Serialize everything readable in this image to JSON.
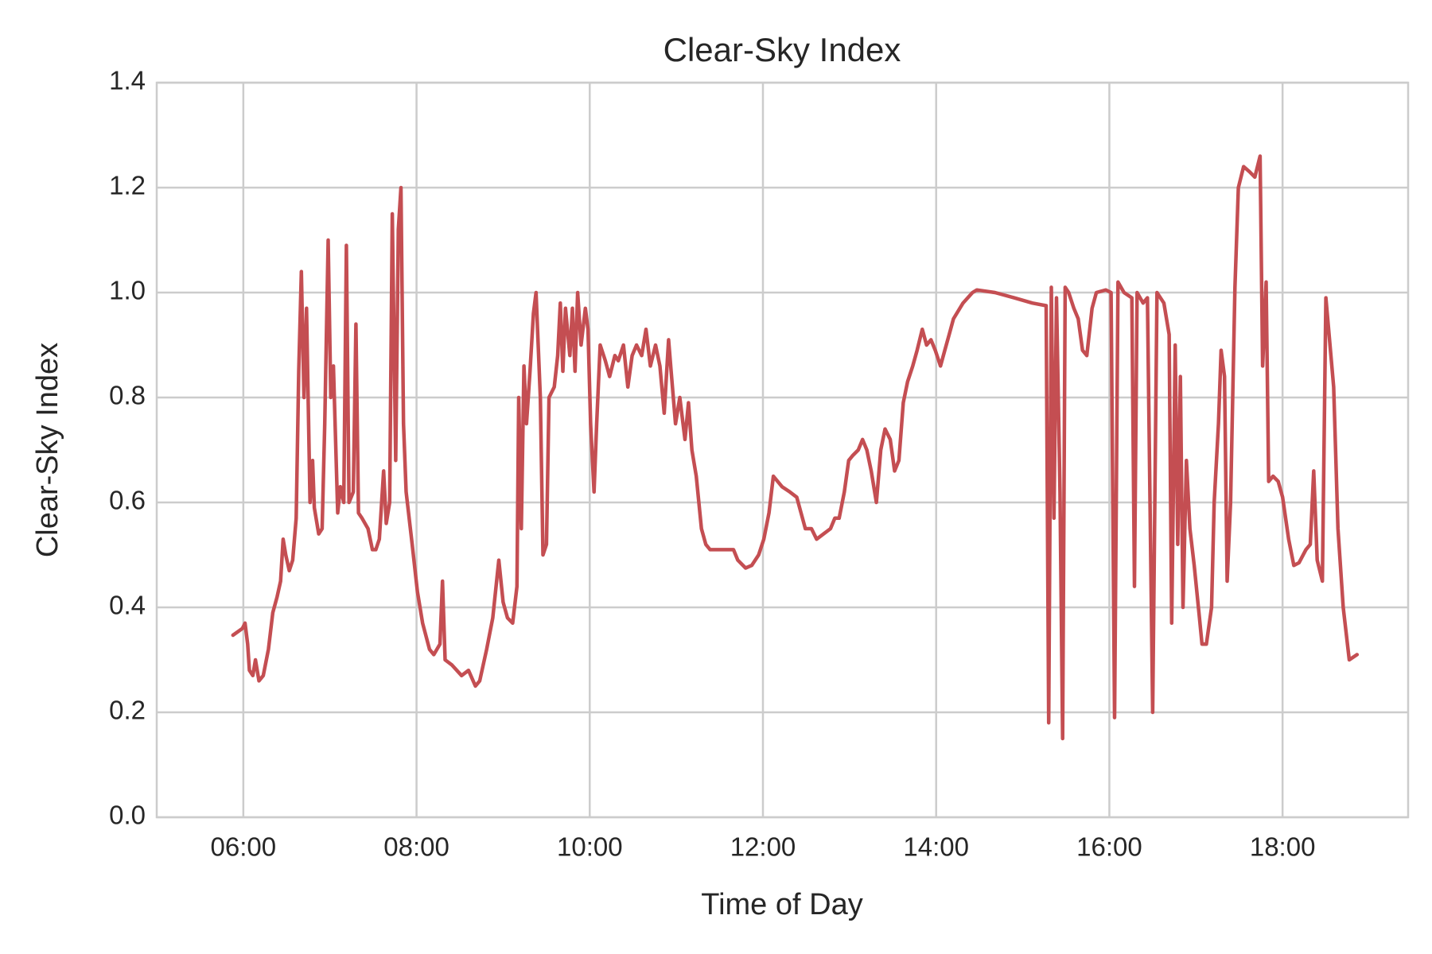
{
  "chart_data": {
    "type": "line",
    "title": "Clear-Sky Index",
    "xlabel": "Time of Day",
    "ylabel": "Clear-Sky Index",
    "color": "#c44e52",
    "grid": true,
    "xlim": [
      5.0,
      19.45
    ],
    "ylim": [
      0,
      1.4
    ],
    "xticks": [
      {
        "value": 6,
        "label": "06:00"
      },
      {
        "value": 8,
        "label": "08:00"
      },
      {
        "value": 10,
        "label": "10:00"
      },
      {
        "value": 12,
        "label": "12:00"
      },
      {
        "value": 14,
        "label": "14:00"
      },
      {
        "value": 16,
        "label": "16:00"
      },
      {
        "value": 18,
        "label": "18:00"
      }
    ],
    "yticks": [
      {
        "value": 0,
        "label": "0.0"
      },
      0.2,
      0.4,
      0.6,
      0.8,
      {
        "value": 1,
        "label": "1.0"
      },
      1.2,
      1.4
    ],
    "x": [
      5.88,
      5.99,
      6.02,
      6.05,
      6.07,
      6.11,
      6.14,
      6.18,
      6.23,
      6.29,
      6.34,
      6.39,
      6.43,
      6.46,
      6.49,
      6.53,
      6.57,
      6.61,
      6.64,
      6.67,
      6.7,
      6.73,
      6.77,
      6.8,
      6.82,
      6.87,
      6.91,
      6.94,
      6.98,
      7.01,
      7.04,
      7.09,
      7.12,
      7.16,
      7.19,
      7.22,
      7.27,
      7.3,
      7.33,
      7.37,
      7.44,
      7.49,
      7.53,
      7.57,
      7.62,
      7.65,
      7.69,
      7.72,
      7.76,
      7.79,
      7.82,
      7.85,
      7.88,
      7.95,
      8.01,
      8.07,
      8.15,
      8.2,
      8.27,
      8.3,
      8.33,
      8.41,
      8.52,
      8.6,
      8.68,
      8.73,
      8.81,
      8.88,
      8.95,
      9.0,
      9.05,
      9.11,
      9.16,
      9.18,
      9.21,
      9.24,
      9.27,
      9.31,
      9.35,
      9.38,
      9.43,
      9.46,
      9.5,
      9.53,
      9.59,
      9.63,
      9.66,
      9.69,
      9.72,
      9.77,
      9.8,
      9.83,
      9.86,
      9.9,
      9.95,
      9.98,
      10.01,
      10.05,
      10.08,
      10.12,
      10.18,
      10.23,
      10.29,
      10.33,
      10.39,
      10.44,
      10.49,
      10.54,
      10.6,
      10.65,
      10.7,
      10.76,
      10.81,
      10.86,
      10.91,
      10.94,
      10.99,
      11.04,
      11.1,
      11.14,
      11.18,
      11.23,
      11.29,
      11.34,
      11.39,
      11.5,
      11.61,
      11.66,
      11.71,
      11.8,
      11.87,
      11.95,
      12.01,
      12.07,
      12.12,
      12.17,
      12.22,
      12.31,
      12.39,
      12.44,
      12.49,
      12.56,
      12.62,
      12.7,
      12.78,
      12.83,
      12.88,
      12.94,
      12.99,
      13.04,
      13.1,
      13.15,
      13.2,
      13.25,
      13.31,
      13.36,
      13.41,
      13.47,
      13.52,
      13.57,
      13.62,
      13.67,
      13.73,
      13.78,
      13.84,
      13.89,
      13.94,
      13.99,
      14.05,
      14.1,
      14.15,
      14.2,
      14.31,
      14.42,
      14.47,
      14.68,
      14.9,
      15.11,
      15.27,
      15.3,
      15.33,
      15.36,
      15.39,
      15.43,
      15.46,
      15.49,
      15.53,
      15.59,
      15.64,
      15.69,
      15.74,
      15.8,
      15.85,
      15.96,
      16.02,
      16.06,
      16.1,
      16.17,
      16.26,
      16.29,
      16.32,
      16.39,
      16.44,
      16.5,
      16.55,
      16.63,
      16.69,
      16.72,
      16.76,
      16.79,
      16.82,
      16.85,
      16.89,
      16.93,
      16.98,
      17.04,
      17.07,
      17.12,
      17.18,
      17.21,
      17.26,
      17.29,
      17.33,
      17.36,
      17.4,
      17.45,
      17.49,
      17.55,
      17.62,
      17.68,
      17.74,
      17.77,
      17.81,
      17.84,
      17.89,
      17.95,
      18.0,
      18.07,
      18.13,
      18.19,
      18.27,
      18.32,
      18.36,
      18.4,
      18.46,
      18.5,
      18.59,
      18.64,
      18.7,
      18.77,
      18.86
    ],
    "values": [
      0.347,
      0.36,
      0.37,
      0.33,
      0.28,
      0.27,
      0.3,
      0.26,
      0.27,
      0.32,
      0.39,
      0.42,
      0.45,
      0.53,
      0.5,
      0.47,
      0.49,
      0.57,
      0.85,
      1.04,
      0.8,
      0.97,
      0.6,
      0.68,
      0.59,
      0.54,
      0.55,
      0.75,
      1.1,
      0.8,
      0.86,
      0.58,
      0.63,
      0.6,
      1.09,
      0.6,
      0.62,
      0.94,
      0.58,
      0.57,
      0.55,
      0.51,
      0.51,
      0.53,
      0.66,
      0.56,
      0.6,
      1.15,
      0.68,
      1.12,
      1.2,
      0.75,
      0.62,
      0.52,
      0.43,
      0.37,
      0.32,
      0.31,
      0.33,
      0.45,
      0.3,
      0.29,
      0.27,
      0.28,
      0.25,
      0.26,
      0.32,
      0.38,
      0.49,
      0.41,
      0.38,
      0.37,
      0.44,
      0.8,
      0.55,
      0.86,
      0.75,
      0.85,
      0.96,
      1.0,
      0.8,
      0.5,
      0.52,
      0.8,
      0.82,
      0.88,
      0.98,
      0.85,
      0.97,
      0.88,
      0.97,
      0.85,
      1.0,
      0.9,
      0.97,
      0.93,
      0.75,
      0.62,
      0.75,
      0.9,
      0.87,
      0.84,
      0.88,
      0.87,
      0.9,
      0.82,
      0.88,
      0.9,
      0.88,
      0.93,
      0.86,
      0.9,
      0.86,
      0.77,
      0.91,
      0.85,
      0.75,
      0.8,
      0.72,
      0.79,
      0.7,
      0.65,
      0.55,
      0.52,
      0.51,
      0.51,
      0.51,
      0.51,
      0.49,
      0.475,
      0.48,
      0.5,
      0.53,
      0.58,
      0.65,
      0.64,
      0.63,
      0.62,
      0.61,
      0.58,
      0.55,
      0.55,
      0.53,
      0.54,
      0.55,
      0.57,
      0.57,
      0.62,
      0.68,
      0.69,
      0.7,
      0.72,
      0.7,
      0.66,
      0.6,
      0.7,
      0.74,
      0.72,
      0.66,
      0.68,
      0.79,
      0.83,
      0.86,
      0.89,
      0.93,
      0.9,
      0.91,
      0.89,
      0.86,
      0.89,
      0.92,
      0.95,
      0.98,
      1.0,
      1.005,
      1.0,
      0.99,
      0.98,
      0.975,
      0.18,
      1.01,
      0.57,
      0.99,
      0.62,
      0.15,
      1.01,
      1.0,
      0.97,
      0.95,
      0.89,
      0.88,
      0.97,
      1.0,
      1.005,
      1.0,
      0.19,
      1.02,
      1.0,
      0.99,
      0.44,
      1.0,
      0.98,
      0.99,
      0.2,
      1.0,
      0.98,
      0.92,
      0.37,
      0.9,
      0.52,
      0.84,
      0.4,
      0.68,
      0.55,
      0.48,
      0.38,
      0.33,
      0.33,
      0.4,
      0.6,
      0.75,
      0.89,
      0.84,
      0.45,
      0.6,
      1.01,
      1.2,
      1.24,
      1.23,
      1.22,
      1.26,
      0.86,
      1.02,
      0.64,
      0.65,
      0.64,
      0.61,
      0.53,
      0.48,
      0.485,
      0.51,
      0.52,
      0.66,
      0.49,
      0.45,
      0.99,
      0.82,
      0.55,
      0.4,
      0.3,
      0.31
    ]
  }
}
